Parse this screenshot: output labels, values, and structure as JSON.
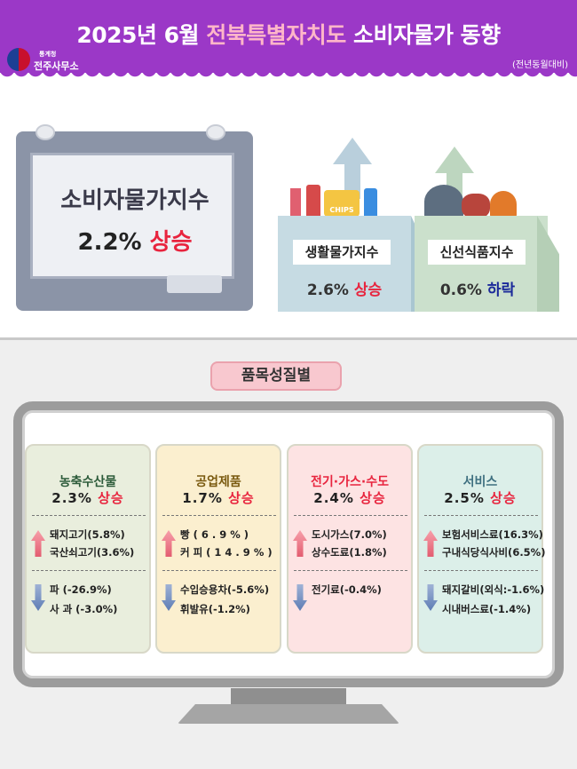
{
  "header": {
    "title_prefix": "2025년 6월 ",
    "title_region": "전북특별자치도",
    "title_suffix": " 소비자물가 동향",
    "org_small": "통계청",
    "org": "전주사무소",
    "basis": "(전년동월대비)"
  },
  "cpi": {
    "label": "소비자물가지수",
    "value": "2.2%",
    "direction": "상승"
  },
  "living": {
    "label": "생활물가지수",
    "value": "2.6%",
    "direction": "상승",
    "bag_text": "CHIPS"
  },
  "fresh": {
    "label": "신선식품지수",
    "value": "0.6%",
    "direction": "하락"
  },
  "section": {
    "label": "품목성질별"
  },
  "colors": {
    "header": "#9b38c7",
    "up": "#e8243e",
    "down": "#1b2a9a"
  },
  "categories": [
    {
      "title": "농축수산물",
      "value": "2.3%",
      "direction": "상승",
      "up": [
        "돼지고기(5.8%)",
        "국산쇠고기(3.6%)"
      ],
      "down": [
        "파 (-26.9%)",
        "사 과 (-3.0%)"
      ]
    },
    {
      "title": "공업제품",
      "value": "1.7%",
      "direction": "상승",
      "up": [
        "빵 ( 6 . 9 % )",
        "커 피 ( 1 4 . 9 % )"
      ],
      "down": [
        "수입승용차(-5.6%)",
        "휘발유(-1.2%)"
      ]
    },
    {
      "title": "전기·가스·수도",
      "value": "2.4%",
      "direction": "상승",
      "up": [
        "도시가스(7.0%)",
        "상수도료(1.8%)"
      ],
      "down": [
        "전기료(-0.4%)"
      ]
    },
    {
      "title": "서비스",
      "value": "2.5%",
      "direction": "상승",
      "up": [
        "보험서비스료(16.3%)",
        "구내식당식사비(6.5%)"
      ],
      "down": [
        "돼지갈비(외식:-1.6%)",
        "시내버스료(-1.4%)"
      ]
    }
  ]
}
